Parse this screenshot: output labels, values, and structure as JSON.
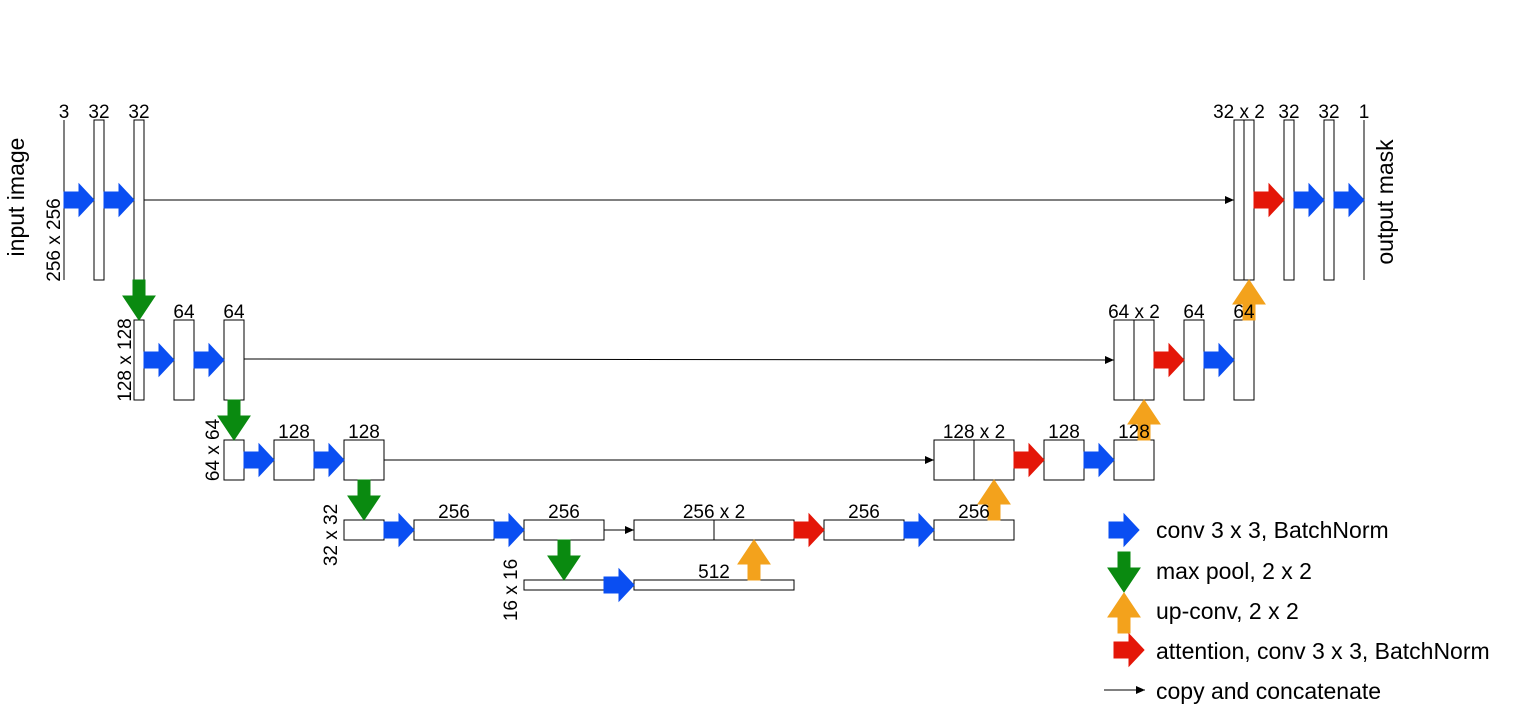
{
  "side_labels": {
    "input": "input image",
    "output": "output mask"
  },
  "spatial_labels": [
    "256 x 256",
    "128 x 128",
    "64 x 64",
    "32 x 32",
    "16 x 16"
  ],
  "channel_labels": {
    "c3": "3",
    "c32a": "32",
    "c32b": "32",
    "c64a": "64",
    "c64b": "64",
    "c128a": "128",
    "c128b": "128",
    "c256a": "256",
    "c256b": "256",
    "c512": "512",
    "d256x2": "256 x 2",
    "d256a": "256",
    "d256b": "256",
    "d128x2": "128 x 2",
    "d128a": "128",
    "d128b": "128",
    "d64x2": "64 x 2",
    "d64a": "64",
    "d64b": "64",
    "d32x2": "32 x 2",
    "d32a": "32",
    "d32b": "32",
    "d1": "1"
  },
  "legend": [
    {
      "kind": "conv",
      "label": "conv 3 x 3, BatchNorm"
    },
    {
      "kind": "pool",
      "label": "max pool, 2 x 2"
    },
    {
      "kind": "upconv",
      "label": "up-conv, 2 x 2"
    },
    {
      "kind": "attention",
      "label": "attention, conv 3 x 3, BatchNorm"
    },
    {
      "kind": "copy",
      "label": "copy and concatenate"
    }
  ],
  "colors": {
    "conv": "#0a4ef2",
    "pool": "#0a8a10",
    "upconv": "#f3a21c",
    "attention": "#e41608"
  }
}
